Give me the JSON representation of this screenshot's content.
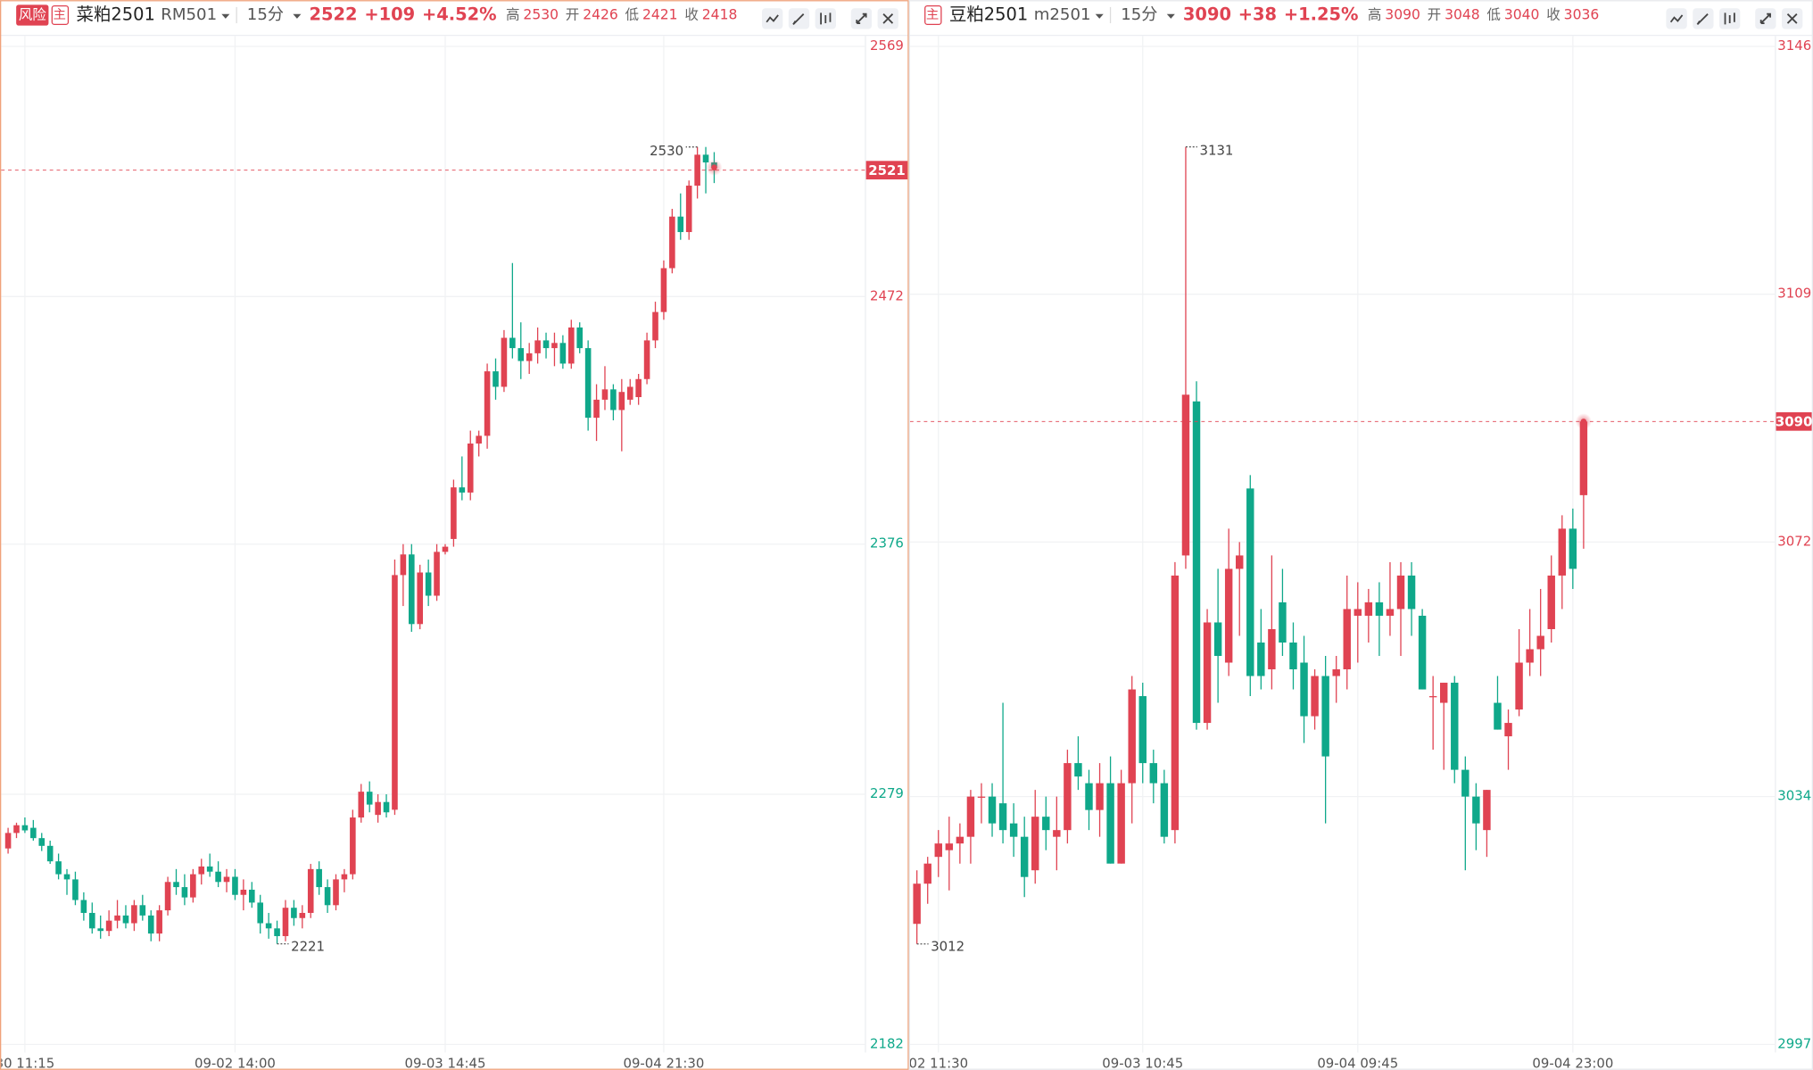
{
  "chart_data": [
    {
      "type": "candlestick",
      "risk_tag": "风险",
      "main_tag": "主",
      "title": "菜粕2501",
      "code": "RM501",
      "interval": "15分",
      "last": "2522",
      "change": "+109",
      "change_pct": "+4.52%",
      "stats": [
        {
          "label": "高",
          "value": "2530"
        },
        {
          "label": "开",
          "value": "2426"
        },
        {
          "label": "低",
          "value": "2421"
        },
        {
          "label": "收",
          "value": "2418"
        }
      ],
      "up_color": "#e04352",
      "down_color": "#0fa88a",
      "change_color": "#e04352",
      "active": true,
      "ylim": [
        2182,
        2569
      ],
      "yticks": [
        2182,
        2279,
        2376,
        2472,
        2569
      ],
      "ytick_colors": [
        "#0fa88a",
        "#0fa88a",
        "#0fa88a",
        "#e04352",
        "#e04352"
      ],
      "xticks": [
        {
          "value": 2,
          "label": "30 11:15"
        },
        {
          "value": 27,
          "label": "09-02 14:00"
        },
        {
          "value": 52,
          "label": "09-03 14:45"
        },
        {
          "value": 78,
          "label": "09-04 21:30"
        }
      ],
      "grid": true,
      "last_price": 2521,
      "high_label": 2530,
      "low_label": 2221,
      "open": [
        2258,
        2264,
        2267,
        2266,
        2262,
        2259,
        2253,
        2248,
        2246,
        2238,
        2233,
        2227,
        2226,
        2230,
        2232,
        2229,
        2236,
        2232,
        2225,
        2234,
        2245,
        2243,
        2239,
        2248,
        2251,
        2249,
        2245,
        2247,
        2240,
        2242,
        2237,
        2229,
        2227,
        2224,
        2235,
        2231,
        2233,
        2250,
        2243,
        2236,
        2246,
        2248,
        2270,
        2280,
        2271,
        2276,
        2273,
        2364,
        2372,
        2345,
        2365,
        2356,
        2373,
        2378,
        2398,
        2396,
        2415,
        2418,
        2443,
        2437,
        2456,
        2452,
        2447,
        2450,
        2455,
        2452,
        2454,
        2446,
        2460,
        2452,
        2425,
        2432,
        2436,
        2428,
        2432,
        2433,
        2440,
        2455,
        2466,
        2483,
        2503,
        2497,
        2515,
        2527,
        2524
      ],
      "high": [
        2266,
        2268,
        2270,
        2269,
        2264,
        2261,
        2256,
        2250,
        2249,
        2241,
        2237,
        2232,
        2234,
        2238,
        2236,
        2238,
        2240,
        2234,
        2236,
        2247,
        2250,
        2248,
        2250,
        2254,
        2256,
        2253,
        2250,
        2250,
        2246,
        2245,
        2240,
        2233,
        2230,
        2238,
        2238,
        2236,
        2252,
        2253,
        2246,
        2248,
        2250,
        2273,
        2283,
        2284,
        2279,
        2279,
        2370,
        2376,
        2376,
        2368,
        2370,
        2376,
        2376,
        2401,
        2410,
        2420,
        2420,
        2446,
        2448,
        2459,
        2485,
        2462,
        2454,
        2460,
        2458,
        2458,
        2457,
        2463,
        2462,
        2455,
        2438,
        2445,
        2438,
        2440,
        2440,
        2442,
        2458,
        2470,
        2486,
        2506,
        2512,
        2517,
        2530,
        2530,
        2528
      ],
      "low": [
        2256,
        2262,
        2264,
        2261,
        2257,
        2252,
        2246,
        2240,
        2236,
        2230,
        2225,
        2223,
        2224,
        2227,
        2227,
        2226,
        2230,
        2222,
        2222,
        2232,
        2240,
        2236,
        2237,
        2244,
        2247,
        2243,
        2241,
        2238,
        2234,
        2235,
        2225,
        2223,
        2221,
        2222,
        2228,
        2227,
        2231,
        2240,
        2233,
        2234,
        2241,
        2246,
        2268,
        2272,
        2268,
        2270,
        2271,
        2352,
        2342,
        2343,
        2352,
        2354,
        2372,
        2375,
        2393,
        2393,
        2410,
        2413,
        2432,
        2435,
        2448,
        2440,
        2442,
        2446,
        2448,
        2445,
        2444,
        2444,
        2450,
        2420,
        2416,
        2428,
        2424,
        2412,
        2430,
        2430,
        2438,
        2452,
        2463,
        2481,
        2494,
        2494,
        2510,
        2512,
        2516
      ],
      "close": [
        2264,
        2267,
        2265,
        2262,
        2259,
        2253,
        2248,
        2246,
        2238,
        2233,
        2227,
        2226,
        2230,
        2232,
        2229,
        2236,
        2232,
        2225,
        2234,
        2245,
        2243,
        2239,
        2248,
        2251,
        2249,
        2245,
        2247,
        2240,
        2242,
        2237,
        2229,
        2227,
        2224,
        2235,
        2231,
        2233,
        2250,
        2243,
        2236,
        2246,
        2248,
        2270,
        2280,
        2275,
        2276,
        2272,
        2364,
        2372,
        2345,
        2365,
        2356,
        2373,
        2375,
        2398,
        2396,
        2415,
        2418,
        2443,
        2437,
        2456,
        2452,
        2447,
        2450,
        2455,
        2452,
        2454,
        2446,
        2460,
        2452,
        2425,
        2432,
        2436,
        2428,
        2435,
        2437,
        2440,
        2455,
        2466,
        2483,
        2503,
        2497,
        2515,
        2527,
        2524,
        2522
      ]
    },
    {
      "type": "candlestick",
      "main_tag": "主",
      "title": "豆粕2501",
      "code": "m2501",
      "interval": "15分",
      "last": "3090",
      "change": "+38",
      "change_pct": "+1.25%",
      "stats": [
        {
          "label": "高",
          "value": "3090"
        },
        {
          "label": "开",
          "value": "3048"
        },
        {
          "label": "低",
          "value": "3040"
        },
        {
          "label": "收",
          "value": "3036"
        }
      ],
      "up_color": "#e04352",
      "down_color": "#0fa88a",
      "change_color": "#e04352",
      "active": false,
      "ylim": [
        2997,
        3146
      ],
      "yticks": [
        2997,
        3034,
        3072,
        3109,
        3146
      ],
      "ytick_colors": [
        "#0fa88a",
        "#0fa88a",
        "#e04352",
        "#e04352",
        "#e04352"
      ],
      "xticks": [
        {
          "value": 2,
          "label": "02 11:30"
        },
        {
          "value": 21,
          "label": "09-03 10:45"
        },
        {
          "value": 41,
          "label": "09-04 09:45"
        },
        {
          "value": 61,
          "label": "09-04 23:00"
        }
      ],
      "grid": true,
      "last_price": 3090,
      "high_label": 3131,
      "low_label": 3012,
      "open": [
        3015,
        3021,
        3025,
        3026,
        3027,
        3028,
        3034,
        3034,
        3033,
        3030,
        3028,
        3023,
        3031,
        3028,
        3029,
        3039,
        3036,
        3032,
        3036,
        3024,
        3036,
        3049,
        3039,
        3036,
        3029,
        3070,
        3093,
        3045,
        3060,
        3054,
        3068,
        3080,
        3057,
        3053,
        3063,
        3057,
        3054,
        3046,
        3052,
        3052,
        3053,
        3061,
        3061,
        3063,
        3061,
        3062,
        3067,
        3061,
        3049,
        3048,
        3051,
        3038,
        3034,
        3029,
        3048,
        3043,
        3047,
        3054,
        3056,
        3059,
        3067,
        3074,
        3079
      ],
      "high": [
        3023,
        3025,
        3029,
        3031,
        3030,
        3035,
        3036,
        3036,
        3048,
        3033,
        3031,
        3035,
        3034,
        3034,
        3041,
        3043,
        3038,
        3039,
        3040,
        3038,
        3052,
        3051,
        3041,
        3038,
        3069,
        3131,
        3096,
        3062,
        3068,
        3074,
        3072,
        3082,
        3062,
        3070,
        3068,
        3060,
        3058,
        3053,
        3055,
        3055,
        3067,
        3066,
        3065,
        3066,
        3069,
        3069,
        3069,
        3062,
        3052,
        3051,
        3052,
        3040,
        3036,
        3035,
        3052,
        3047,
        3059,
        3062,
        3065,
        3070,
        3076,
        3077,
        3090
      ],
      "low": [
        3012,
        3018,
        3022,
        3020,
        3024,
        3024,
        3030,
        3028,
        3027,
        3025,
        3019,
        3021,
        3026,
        3023,
        3027,
        3035,
        3029,
        3028,
        3024,
        3024,
        3030,
        3036,
        3033,
        3027,
        3027,
        3068,
        3044,
        3044,
        3048,
        3052,
        3058,
        3049,
        3050,
        3050,
        3055,
        3050,
        3042,
        3044,
        3030,
        3048,
        3050,
        3054,
        3057,
        3055,
        3058,
        3055,
        3058,
        3050,
        3041,
        3038,
        3036,
        3023,
        3026,
        3025,
        3044,
        3038,
        3046,
        3052,
        3052,
        3057,
        3062,
        3065,
        3071
      ],
      "close": [
        3021,
        3024,
        3027,
        3027,
        3028,
        3034,
        3034,
        3030,
        3029,
        3028,
        3022,
        3031,
        3029,
        3029,
        3039,
        3037,
        3032,
        3036,
        3024,
        3036,
        3050,
        3039,
        3036,
        3028,
        3067,
        3094,
        3045,
        3060,
        3055,
        3068,
        3070,
        3052,
        3052,
        3059,
        3057,
        3053,
        3046,
        3052,
        3040,
        3053,
        3062,
        3062,
        3063,
        3061,
        3062,
        3067,
        3062,
        3050,
        3049,
        3051,
        3038,
        3034,
        3030,
        3035,
        3044,
        3045,
        3054,
        3056,
        3058,
        3067,
        3074,
        3068,
        3090
      ]
    }
  ]
}
